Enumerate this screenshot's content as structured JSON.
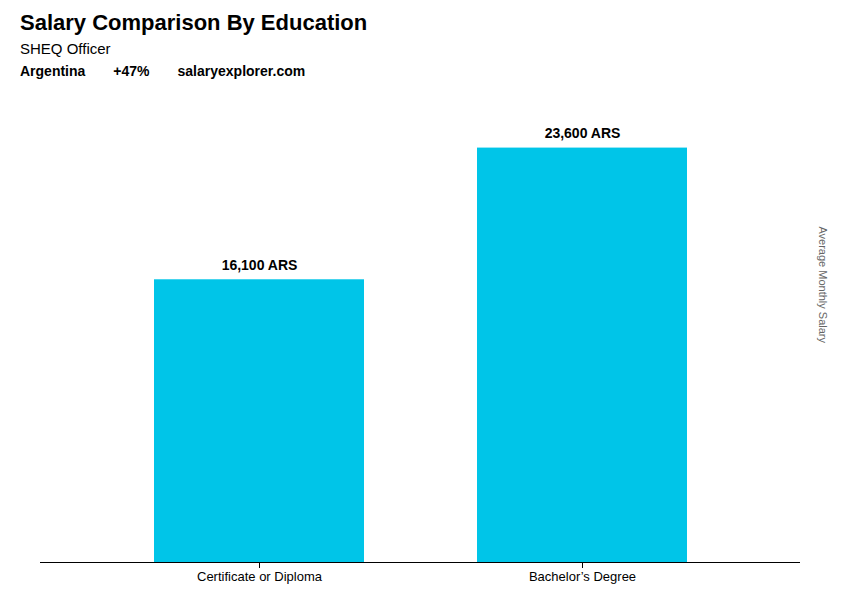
{
  "chart_data": {
    "type": "bar",
    "title": "Salary Comparison By Education",
    "subtitle": "SHEQ Officer",
    "annotations": [
      "Argentina",
      "+47%",
      "salaryexplorer.com"
    ],
    "y_label": "Average Monthly Salary",
    "categories": [
      "Certificate or Diploma",
      "Bachelor’s Degree"
    ],
    "values": [
      16100,
      23600
    ],
    "value_labels": [
      "16,100 ARS",
      "23,600 ARS"
    ],
    "data_labels": true,
    "color": "#00C5E8",
    "ylim": [
      0,
      25000
    ],
    "tick_labels": "x",
    "grid": false
  }
}
